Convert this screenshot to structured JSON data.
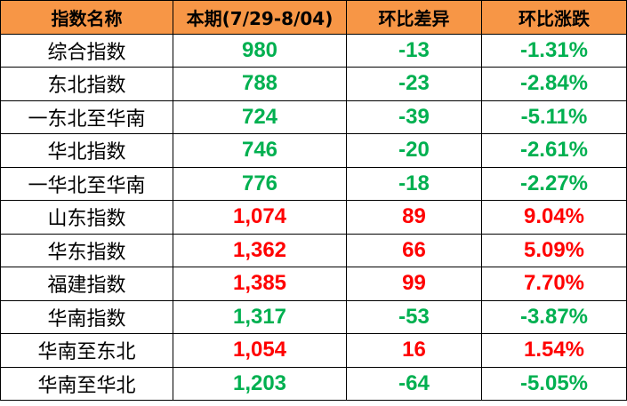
{
  "colors": {
    "header_bg": "#F79646",
    "up": "#FF0000",
    "down": "#00B050"
  },
  "headers": [
    "指数名称",
    "本期(7/29-8/04)",
    "环比差异",
    "环比涨跌"
  ],
  "rows": [
    {
      "name": "综合指数",
      "value": "980",
      "diff": "-13",
      "pct": "-1.31%",
      "trend": "down"
    },
    {
      "name": "东北指数",
      "value": "788",
      "diff": "-23",
      "pct": "-2.84%",
      "trend": "down"
    },
    {
      "name": "一东北至华南",
      "value": "724",
      "diff": "-39",
      "pct": "-5.11%",
      "trend": "down"
    },
    {
      "name": "华北指数",
      "value": "746",
      "diff": "-20",
      "pct": "-2.61%",
      "trend": "down"
    },
    {
      "name": "一华北至华南",
      "value": "776",
      "diff": "-18",
      "pct": "-2.27%",
      "trend": "down"
    },
    {
      "name": "山东指数",
      "value": "1,074",
      "diff": "89",
      "pct": "9.04%",
      "trend": "up"
    },
    {
      "name": "华东指数",
      "value": "1,362",
      "diff": "66",
      "pct": "5.09%",
      "trend": "up"
    },
    {
      "name": "福建指数",
      "value": "1,385",
      "diff": "99",
      "pct": "7.70%",
      "trend": "up"
    },
    {
      "name": "华南指数",
      "value": "1,317",
      "diff": "-53",
      "pct": "-3.87%",
      "trend": "down"
    },
    {
      "name": "华南至东北",
      "value": "1,054",
      "diff": "16",
      "pct": "1.54%",
      "trend": "up"
    },
    {
      "name": "华南至华北",
      "value": "1,203",
      "diff": "-64",
      "pct": "-5.05%",
      "trend": "down"
    }
  ]
}
